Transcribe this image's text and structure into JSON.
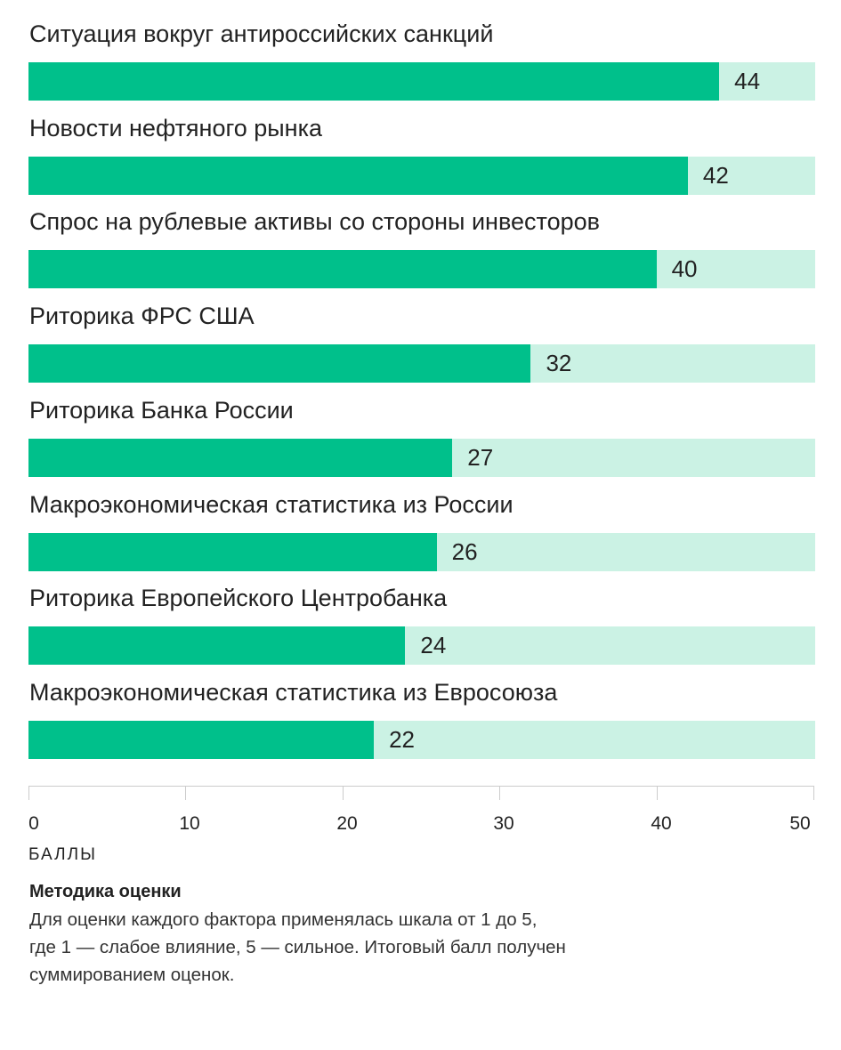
{
  "chart_data": {
    "type": "bar",
    "orientation": "horizontal",
    "categories": [
      "Ситуация вокруг антироссийских санкций",
      "Новости нефтяного рынка",
      "Спрос на рублевые активы со стороны инвесторов",
      "Риторика ФРС США",
      "Риторика Банка России",
      "Макроэкономическая статистика из России",
      "Риторика Европейского Центробанка",
      "Макроэкономическая статистика из Евросоюза"
    ],
    "values": [
      44,
      42,
      40,
      32,
      27,
      26,
      24,
      22
    ],
    "xlim": [
      0,
      50
    ],
    "ticks": [
      "0",
      "10",
      "20",
      "30",
      "40",
      "50"
    ],
    "xlabel": "БАЛЛЫ",
    "grid": false,
    "colors": {
      "bar": "#00c08b",
      "track": "#cbf2e4"
    }
  },
  "methodology": {
    "title": "Методика оценки",
    "lines": [
      "Для оценки каждого фактора применялась шкала от 1 до 5,",
      "где 1 — слабое влияние, 5 — сильное. Итоговый балл получен",
      "суммированием оценок."
    ]
  }
}
